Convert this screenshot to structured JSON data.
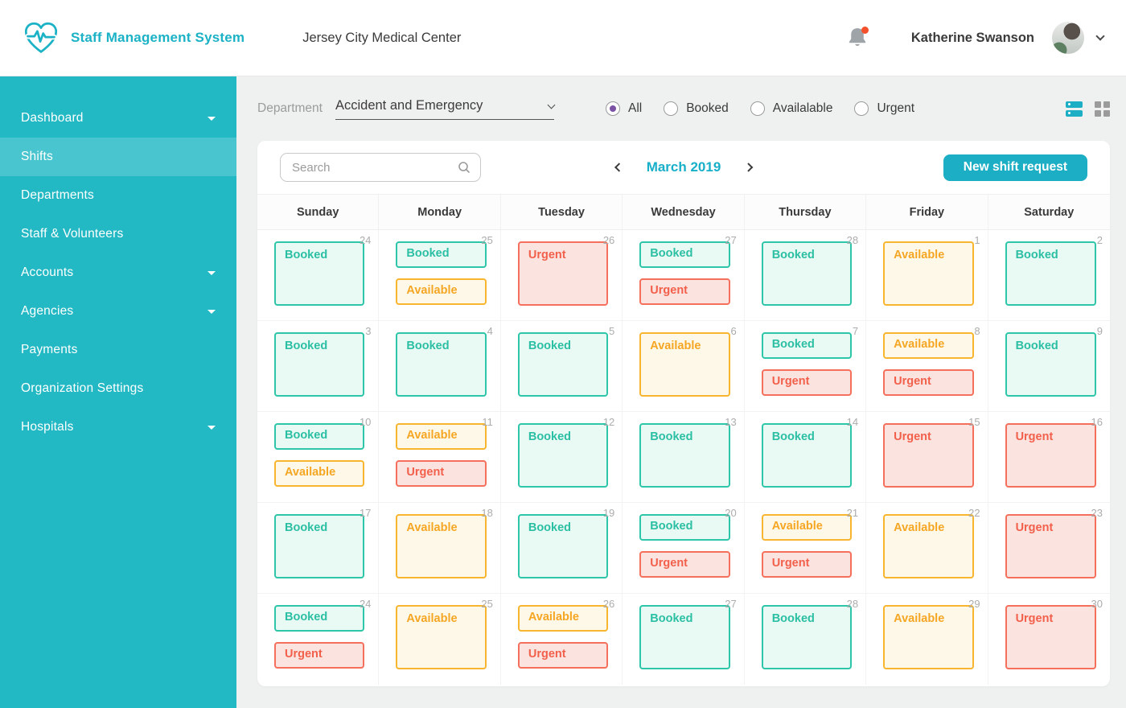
{
  "header": {
    "app_name": "Staff Management System",
    "org_name": "Jersey City Medical Center",
    "user_name": "Katherine Swanson"
  },
  "sidebar": {
    "items": [
      {
        "label": "Dashboard",
        "caret": true,
        "active": false
      },
      {
        "label": "Shifts",
        "caret": false,
        "active": true
      },
      {
        "label": "Departments",
        "caret": false,
        "active": false
      },
      {
        "label": "Staff & Volunteers",
        "caret": false,
        "active": false
      },
      {
        "label": "Accounts",
        "caret": true,
        "active": false
      },
      {
        "label": "Agencies",
        "caret": true,
        "active": false
      },
      {
        "label": "Payments",
        "caret": false,
        "active": false
      },
      {
        "label": "Organization Settings",
        "caret": false,
        "active": false
      },
      {
        "label": "Hospitals",
        "caret": true,
        "active": false
      }
    ]
  },
  "filters": {
    "department_label": "Department",
    "department_value": "Accident and Emergency",
    "radios": [
      {
        "label": "All",
        "selected": true
      },
      {
        "label": "Booked",
        "selected": false
      },
      {
        "label": "Availalable",
        "selected": false
      },
      {
        "label": "Urgent",
        "selected": false
      }
    ]
  },
  "calendar": {
    "search_placeholder": "Search",
    "month_label": "March 2019",
    "new_shift_button": "New shift request",
    "day_headers": [
      "Sunday",
      "Monday",
      "Tuesday",
      "Wednesday",
      "Thursday",
      "Friday",
      "Saturday"
    ],
    "weeks": [
      [
        {
          "date": "24",
          "badges": [
            {
              "label": "Booked",
              "type": "booked",
              "size": "large"
            }
          ]
        },
        {
          "date": "25",
          "badges": [
            {
              "label": "Booked",
              "type": "booked",
              "size": "small"
            },
            {
              "label": "Available",
              "type": "available",
              "size": "small"
            }
          ]
        },
        {
          "date": "26",
          "badges": [
            {
              "label": "Urgent",
              "type": "urgent",
              "size": "large"
            }
          ]
        },
        {
          "date": "27",
          "badges": [
            {
              "label": "Booked",
              "type": "booked",
              "size": "small"
            },
            {
              "label": "Urgent",
              "type": "urgent",
              "size": "small"
            }
          ]
        },
        {
          "date": "28",
          "badges": [
            {
              "label": "Booked",
              "type": "booked",
              "size": "large"
            }
          ]
        },
        {
          "date": "1",
          "badges": [
            {
              "label": "Available",
              "type": "available",
              "size": "large"
            }
          ]
        },
        {
          "date": "2",
          "badges": [
            {
              "label": "Booked",
              "type": "booked",
              "size": "large"
            }
          ]
        }
      ],
      [
        {
          "date": "3",
          "badges": [
            {
              "label": "Booked",
              "type": "booked",
              "size": "large"
            }
          ]
        },
        {
          "date": "4",
          "badges": [
            {
              "label": "Booked",
              "type": "booked",
              "size": "large"
            }
          ]
        },
        {
          "date": "5",
          "badges": [
            {
              "label": "Booked",
              "type": "booked",
              "size": "large"
            }
          ]
        },
        {
          "date": "6",
          "badges": [
            {
              "label": "Available",
              "type": "available",
              "size": "large"
            }
          ]
        },
        {
          "date": "7",
          "badges": [
            {
              "label": "Booked",
              "type": "booked",
              "size": "small"
            },
            {
              "label": "Urgent",
              "type": "urgent",
              "size": "small"
            }
          ]
        },
        {
          "date": "8",
          "badges": [
            {
              "label": "Available",
              "type": "available",
              "size": "small"
            },
            {
              "label": "Urgent",
              "type": "urgent",
              "size": "small"
            }
          ]
        },
        {
          "date": "9",
          "badges": [
            {
              "label": "Booked",
              "type": "booked",
              "size": "large"
            }
          ]
        }
      ],
      [
        {
          "date": "10",
          "badges": [
            {
              "label": "Booked",
              "type": "booked",
              "size": "small"
            },
            {
              "label": "Available",
              "type": "available",
              "size": "small"
            }
          ]
        },
        {
          "date": "11",
          "badges": [
            {
              "label": "Available",
              "type": "available",
              "size": "small"
            },
            {
              "label": "Urgent",
              "type": "urgent",
              "size": "small"
            }
          ]
        },
        {
          "date": "12",
          "badges": [
            {
              "label": "Booked",
              "type": "booked",
              "size": "large"
            }
          ]
        },
        {
          "date": "13",
          "badges": [
            {
              "label": "Booked",
              "type": "booked",
              "size": "large"
            }
          ]
        },
        {
          "date": "14",
          "badges": [
            {
              "label": "Booked",
              "type": "booked",
              "size": "large"
            }
          ]
        },
        {
          "date": "15",
          "badges": [
            {
              "label": "Urgent",
              "type": "urgent",
              "size": "large"
            }
          ]
        },
        {
          "date": "16",
          "badges": [
            {
              "label": "Urgent",
              "type": "urgent",
              "size": "large"
            }
          ]
        }
      ],
      [
        {
          "date": "17",
          "badges": [
            {
              "label": "Booked",
              "type": "booked",
              "size": "large"
            }
          ]
        },
        {
          "date": "18",
          "badges": [
            {
              "label": "Available",
              "type": "available",
              "size": "large"
            }
          ]
        },
        {
          "date": "19",
          "badges": [
            {
              "label": "Booked",
              "type": "booked",
              "size": "large"
            }
          ]
        },
        {
          "date": "20",
          "badges": [
            {
              "label": "Booked",
              "type": "booked",
              "size": "small"
            },
            {
              "label": "Urgent",
              "type": "urgent",
              "size": "small"
            }
          ]
        },
        {
          "date": "21",
          "badges": [
            {
              "label": "Available",
              "type": "available",
              "size": "small"
            },
            {
              "label": "Urgent",
              "type": "urgent",
              "size": "small"
            }
          ]
        },
        {
          "date": "22",
          "badges": [
            {
              "label": "Available",
              "type": "available",
              "size": "large"
            }
          ]
        },
        {
          "date": "23",
          "badges": [
            {
              "label": "Urgent",
              "type": "urgent",
              "size": "large"
            }
          ]
        }
      ],
      [
        {
          "date": "24",
          "badges": [
            {
              "label": "Booked",
              "type": "booked",
              "size": "small"
            },
            {
              "label": "Urgent",
              "type": "urgent",
              "size": "small"
            }
          ]
        },
        {
          "date": "25",
          "badges": [
            {
              "label": "Available",
              "type": "available",
              "size": "large"
            }
          ]
        },
        {
          "date": "26",
          "badges": [
            {
              "label": "Available",
              "type": "available",
              "size": "small"
            },
            {
              "label": "Urgent",
              "type": "urgent",
              "size": "small"
            }
          ]
        },
        {
          "date": "27",
          "badges": [
            {
              "label": "Booked",
              "type": "booked",
              "size": "large"
            }
          ]
        },
        {
          "date": "28",
          "badges": [
            {
              "label": "Booked",
              "type": "booked",
              "size": "large"
            }
          ]
        },
        {
          "date": "29",
          "badges": [
            {
              "label": "Available",
              "type": "available",
              "size": "large"
            }
          ]
        },
        {
          "date": "30",
          "badges": [
            {
              "label": "Urgent",
              "type": "urgent",
              "size": "large"
            }
          ]
        }
      ]
    ]
  },
  "colors": {
    "accent_teal": "#1CAEC4",
    "sidebar_teal": "#22B8C4",
    "sidebar_active": "#48C5CE",
    "booked": "#2EC6A8",
    "available": "#F7B530",
    "urgent": "#F4705C",
    "radio_selected": "#7C52A5",
    "notification_dot": "#F4502C"
  }
}
